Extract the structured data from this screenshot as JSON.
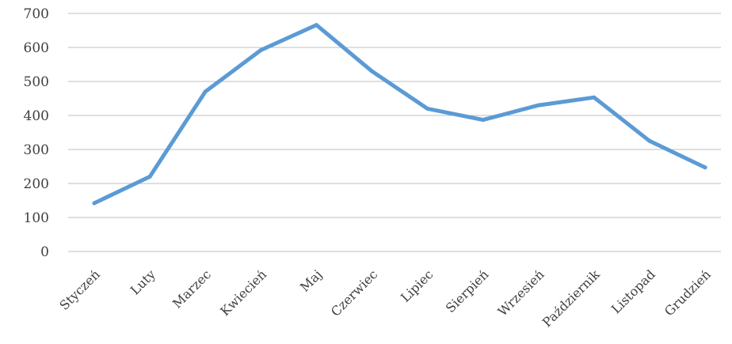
{
  "chart_data": {
    "type": "line",
    "title": "",
    "xlabel": "",
    "ylabel": "",
    "categories": [
      "Styczeń",
      "Luty",
      "Marzec",
      "Kwiecień",
      "Maj",
      "Czerwiec",
      "Lipiec",
      "Sierpień",
      "Wrzesień",
      "Październik",
      "Listopad",
      "Grudzień"
    ],
    "series": [
      {
        "values": [
          142,
          220,
          470,
          592,
          666,
          530,
          420,
          387,
          430,
          453,
          325,
          247
        ]
      }
    ],
    "ylim": [
      0,
      700
    ],
    "yticks": [
      0,
      100,
      200,
      300,
      400,
      500,
      600,
      700
    ],
    "grid": true,
    "legend": "none",
    "colors": {
      "series": "#5b9bd5",
      "grid": "#bfbfbf",
      "text": "#404040"
    }
  }
}
